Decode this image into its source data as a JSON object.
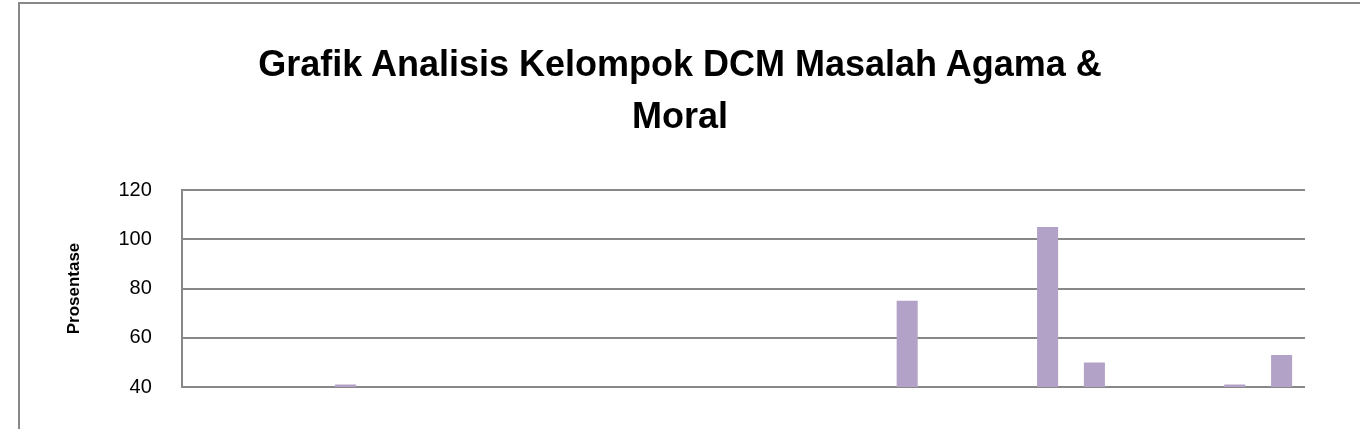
{
  "chart_data": {
    "type": "bar",
    "title": "Grafik Analisis Kelompok DCM Masalah Agama & Moral",
    "ylabel": "Prosentase",
    "categories": [
      null,
      null,
      null,
      null,
      null,
      null,
      null,
      null,
      null,
      null,
      null,
      null,
      null,
      null,
      null,
      null,
      null,
      null,
      null,
      null,
      null,
      null,
      null,
      null
    ],
    "values": [
      null,
      null,
      null,
      41,
      null,
      null,
      null,
      null,
      null,
      null,
      null,
      null,
      null,
      null,
      null,
      75,
      null,
      null,
      105,
      50,
      null,
      null,
      41,
      53
    ],
    "color": "#b3a2c7",
    "ylim": [
      40,
      120
    ],
    "yticks": [
      40,
      60,
      80,
      100,
      120
    ],
    "grid": "y",
    "tick_labels": "y"
  }
}
